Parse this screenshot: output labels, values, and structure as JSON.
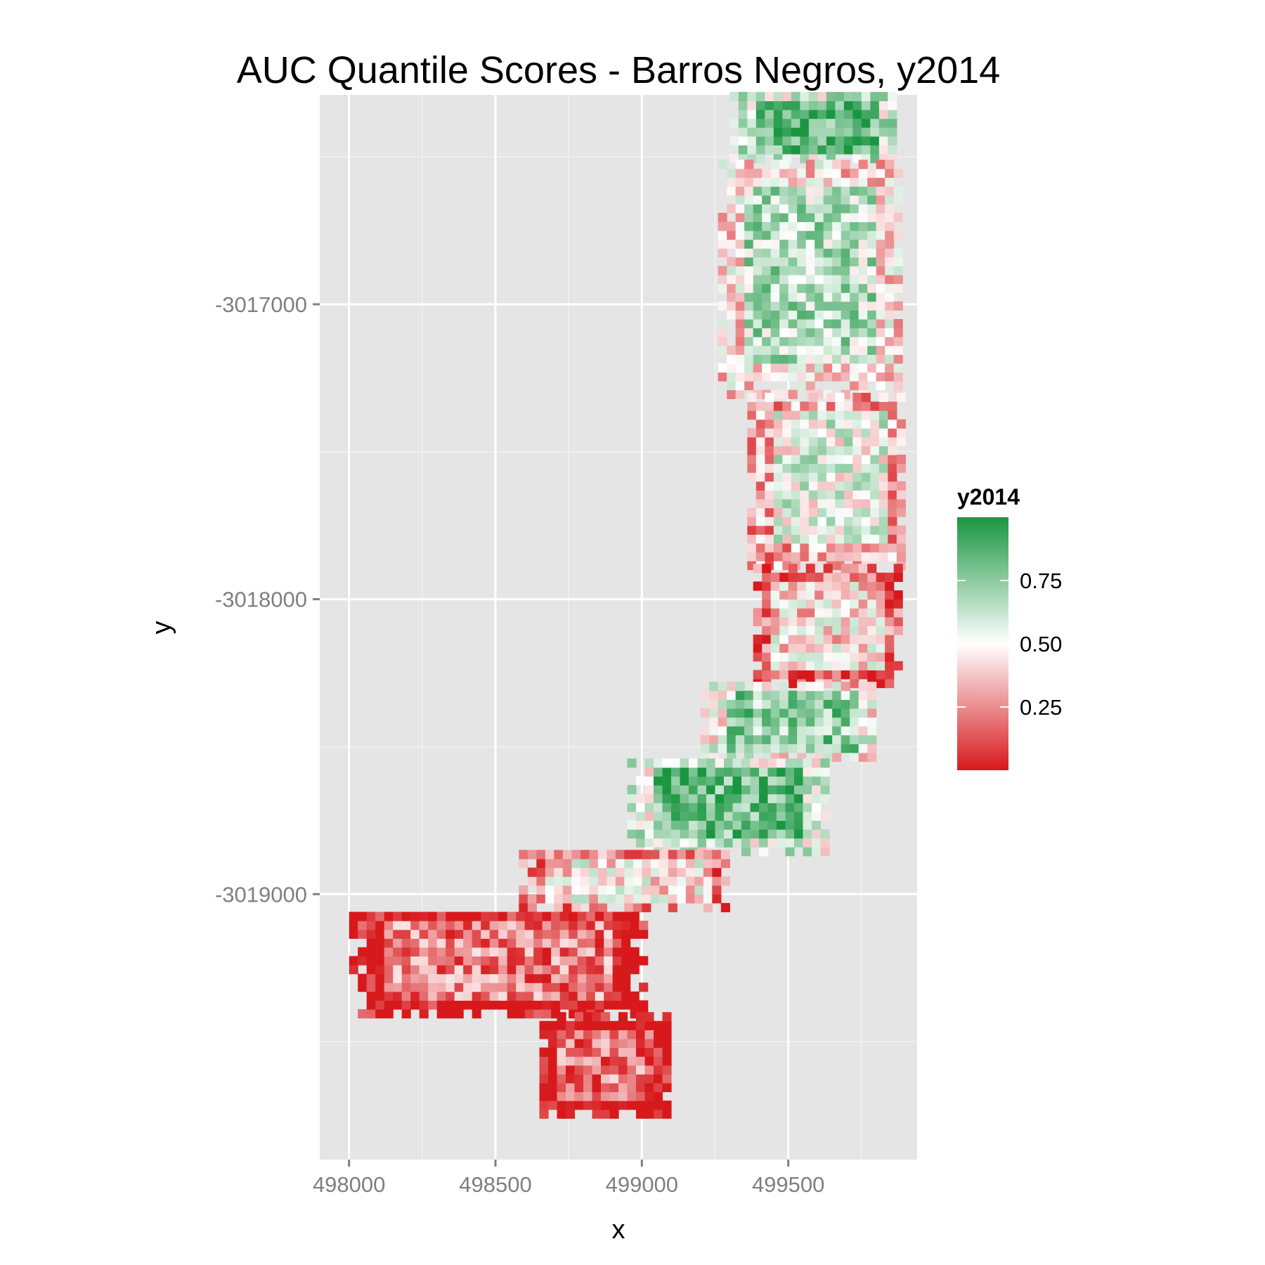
{
  "chart_data": {
    "type": "heatmap",
    "title": "AUC Quantile Scores - Barros Negros, y2014",
    "xlabel": "x",
    "ylabel": "y",
    "xlim": [
      497900,
      499940
    ],
    "ylim": [
      -3019900,
      -3016290
    ],
    "x_ticks": [
      {
        "value": 498000,
        "label": "498000"
      },
      {
        "value": 498500,
        "label": "498500"
      },
      {
        "value": 499000,
        "label": "499000"
      },
      {
        "value": 499500,
        "label": "499500"
      }
    ],
    "y_ticks": [
      {
        "value": -3017000,
        "label": "-3017000"
      },
      {
        "value": -3018000,
        "label": "-3018000"
      },
      {
        "value": -3019000,
        "label": "-3019000"
      }
    ],
    "grid": true,
    "cell_size": 30,
    "value_range": [
      0,
      1
    ],
    "colorscale": [
      {
        "stop": 0.0,
        "color": "#d7191c"
      },
      {
        "stop": 0.5,
        "color": "#ffffff"
      },
      {
        "stop": 1.0,
        "color": "#1a9641"
      }
    ],
    "legend": {
      "title": "y2014",
      "placement": "right",
      "ticks": [
        {
          "value": 0.75,
          "label": "0.75"
        },
        {
          "value": 0.5,
          "label": "0.50"
        },
        {
          "value": 0.25,
          "label": "0.25"
        }
      ]
    },
    "regions": [
      {
        "x": [
          499300,
          499870
        ],
        "y": [
          -3016520,
          -3016290
        ],
        "level": 0.86
      },
      {
        "x": [
          499260,
          499870
        ],
        "y": [
          -3017320,
          -3016520
        ],
        "level": 0.66
      },
      {
        "x": [
          499360,
          499880
        ],
        "y": [
          -3017900,
          -3017320
        ],
        "level": 0.55
      },
      {
        "x": [
          499380,
          499880
        ],
        "y": [
          -3018300,
          -3017900
        ],
        "level": 0.42
      },
      {
        "x": [
          499200,
          499800
        ],
        "y": [
          -3018550,
          -3018300
        ],
        "level": 0.74
      },
      {
        "x": [
          498950,
          499620
        ],
        "y": [
          -3018870,
          -3018550
        ],
        "level": 0.82
      },
      {
        "x": [
          498580,
          499300
        ],
        "y": [
          -3019060,
          -3018870
        ],
        "level": 0.45
      },
      {
        "x": [
          498000,
          499000
        ],
        "y": [
          -3019420,
          -3019060
        ],
        "level": 0.22
      },
      {
        "x": [
          498650,
          499080
        ],
        "y": [
          -3019760,
          -3019420
        ],
        "level": 0.2
      }
    ]
  }
}
